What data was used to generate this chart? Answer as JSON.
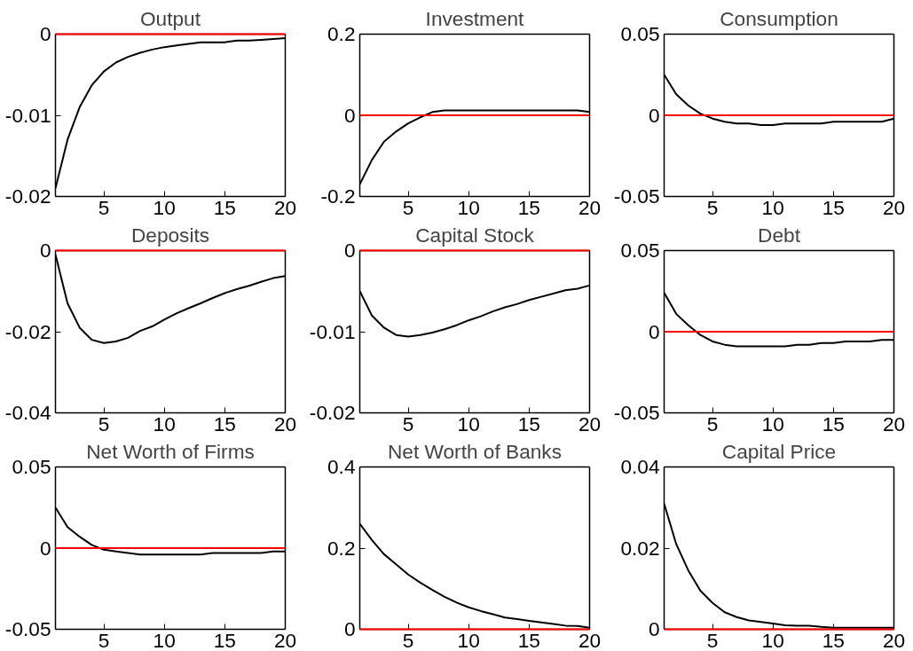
{
  "chart_data": [
    {
      "type": "line",
      "title": "Output",
      "x": [
        1,
        2,
        3,
        4,
        5,
        6,
        7,
        8,
        9,
        10,
        11,
        12,
        13,
        14,
        15,
        16,
        17,
        18,
        19,
        20
      ],
      "series": [
        {
          "color": "#000000",
          "values": [
            -0.019,
            -0.013,
            -0.009,
            -0.0063,
            -0.0046,
            -0.0035,
            -0.0028,
            -0.0023,
            -0.0019,
            -0.0016,
            -0.0014,
            -0.0012,
            -0.001,
            -0.001,
            -0.001,
            -0.0008,
            -0.0008,
            -0.0007,
            -0.0006,
            -0.0005
          ]
        }
      ],
      "xlim": [
        1,
        20
      ],
      "xticks": [
        5,
        10,
        15,
        20
      ],
      "ylim": [
        -0.02,
        0
      ],
      "yticks": [
        -0.02,
        -0.01,
        0
      ],
      "ref_lines": [
        {
          "axis": "y",
          "value": 0,
          "color": "#ff0000"
        }
      ],
      "grid": false
    },
    {
      "type": "line",
      "title": "Investment",
      "x": [
        1,
        2,
        3,
        4,
        5,
        6,
        7,
        8,
        9,
        10,
        11,
        12,
        13,
        14,
        15,
        16,
        17,
        18,
        19,
        20
      ],
      "series": [
        {
          "color": "#000000",
          "values": [
            -0.17,
            -0.11,
            -0.065,
            -0.04,
            -0.02,
            -0.005,
            0.008,
            0.012,
            0.012,
            0.012,
            0.012,
            0.012,
            0.012,
            0.012,
            0.012,
            0.012,
            0.012,
            0.012,
            0.012,
            0.008
          ]
        }
      ],
      "xlim": [
        1,
        20
      ],
      "xticks": [
        5,
        10,
        15,
        20
      ],
      "ylim": [
        -0.2,
        0.2
      ],
      "yticks": [
        -0.2,
        0,
        0.2
      ],
      "ref_lines": [
        {
          "axis": "y",
          "value": 0,
          "color": "#ff0000"
        }
      ],
      "grid": false
    },
    {
      "type": "line",
      "title": "Consumption",
      "x": [
        1,
        2,
        3,
        4,
        5,
        6,
        7,
        8,
        9,
        10,
        11,
        12,
        13,
        14,
        15,
        16,
        17,
        18,
        19,
        20
      ],
      "series": [
        {
          "color": "#000000",
          "values": [
            0.025,
            0.013,
            0.006,
            0.001,
            -0.002,
            -0.004,
            -0.005,
            -0.005,
            -0.006,
            -0.006,
            -0.005,
            -0.005,
            -0.005,
            -0.005,
            -0.004,
            -0.004,
            -0.004,
            -0.004,
            -0.004,
            -0.002
          ]
        }
      ],
      "xlim": [
        1,
        20
      ],
      "xticks": [
        5,
        10,
        15,
        20
      ],
      "ylim": [
        -0.05,
        0.05
      ],
      "yticks": [
        -0.05,
        0,
        0.05
      ],
      "ref_lines": [
        {
          "axis": "y",
          "value": 0,
          "color": "#ff0000"
        }
      ],
      "grid": false
    },
    {
      "type": "line",
      "title": "Deposits",
      "x": [
        1,
        2,
        3,
        4,
        5,
        6,
        7,
        8,
        9,
        10,
        11,
        12,
        13,
        14,
        15,
        16,
        17,
        18,
        19,
        20
      ],
      "series": [
        {
          "color": "#000000",
          "values": [
            -0.001,
            -0.013,
            -0.019,
            -0.022,
            -0.0228,
            -0.0224,
            -0.0215,
            -0.0198,
            -0.0187,
            -0.017,
            -0.0155,
            -0.0142,
            -0.013,
            -0.0117,
            -0.0105,
            -0.0095,
            -0.0087,
            -0.0077,
            -0.0068,
            -0.0063
          ]
        }
      ],
      "xlim": [
        1,
        20
      ],
      "xticks": [
        5,
        10,
        15,
        20
      ],
      "ylim": [
        -0.04,
        0
      ],
      "yticks": [
        -0.04,
        -0.02,
        0
      ],
      "ref_lines": [
        {
          "axis": "y",
          "value": 0,
          "color": "#ff0000"
        }
      ],
      "grid": false
    },
    {
      "type": "line",
      "title": "Capital Stock",
      "x": [
        1,
        2,
        3,
        4,
        5,
        6,
        7,
        8,
        9,
        10,
        11,
        12,
        13,
        14,
        15,
        16,
        17,
        18,
        19,
        20
      ],
      "series": [
        {
          "color": "#000000",
          "values": [
            -0.005,
            -0.008,
            -0.0095,
            -0.0104,
            -0.0106,
            -0.0104,
            -0.0101,
            -0.0097,
            -0.0092,
            -0.0086,
            -0.0081,
            -0.0075,
            -0.007,
            -0.0066,
            -0.0061,
            -0.0057,
            -0.0053,
            -0.0049,
            -0.0047,
            -0.0043
          ]
        }
      ],
      "xlim": [
        1,
        20
      ],
      "xticks": [
        5,
        10,
        15,
        20
      ],
      "ylim": [
        -0.02,
        0
      ],
      "yticks": [
        -0.02,
        -0.01,
        0
      ],
      "ref_lines": [
        {
          "axis": "y",
          "value": 0,
          "color": "#ff0000"
        }
      ],
      "grid": false
    },
    {
      "type": "line",
      "title": "Debt",
      "x": [
        1,
        2,
        3,
        4,
        5,
        6,
        7,
        8,
        9,
        10,
        11,
        12,
        13,
        14,
        15,
        16,
        17,
        18,
        19,
        20
      ],
      "series": [
        {
          "color": "#000000",
          "values": [
            0.024,
            0.011,
            0.004,
            -0.002,
            -0.006,
            -0.008,
            -0.009,
            -0.009,
            -0.009,
            -0.009,
            -0.009,
            -0.008,
            -0.008,
            -0.007,
            -0.007,
            -0.006,
            -0.006,
            -0.006,
            -0.005,
            -0.005
          ]
        }
      ],
      "xlim": [
        1,
        20
      ],
      "xticks": [
        5,
        10,
        15,
        20
      ],
      "ylim": [
        -0.05,
        0.05
      ],
      "yticks": [
        -0.05,
        0,
        0.05
      ],
      "ref_lines": [
        {
          "axis": "y",
          "value": 0,
          "color": "#ff0000"
        }
      ],
      "grid": false
    },
    {
      "type": "line",
      "title": "Net Worth of Firms",
      "x": [
        1,
        2,
        3,
        4,
        5,
        6,
        7,
        8,
        9,
        10,
        11,
        12,
        13,
        14,
        15,
        16,
        17,
        18,
        19,
        20
      ],
      "series": [
        {
          "color": "#000000",
          "values": [
            0.025,
            0.013,
            0.007,
            0.002,
            -0.001,
            -0.002,
            -0.003,
            -0.004,
            -0.004,
            -0.004,
            -0.004,
            -0.004,
            -0.004,
            -0.003,
            -0.003,
            -0.003,
            -0.003,
            -0.003,
            -0.002,
            -0.002
          ]
        }
      ],
      "xlim": [
        1,
        20
      ],
      "xticks": [
        5,
        10,
        15,
        20
      ],
      "ylim": [
        -0.05,
        0.05
      ],
      "yticks": [
        -0.05,
        0,
        0.05
      ],
      "ref_lines": [
        {
          "axis": "y",
          "value": 0,
          "color": "#ff0000"
        }
      ],
      "grid": false
    },
    {
      "type": "line",
      "title": "Net Worth of Banks",
      "x": [
        1,
        2,
        3,
        4,
        5,
        6,
        7,
        8,
        9,
        10,
        11,
        12,
        13,
        14,
        15,
        16,
        17,
        18,
        19,
        20
      ],
      "series": [
        {
          "color": "#000000",
          "values": [
            0.26,
            0.22,
            0.185,
            0.16,
            0.135,
            0.115,
            0.097,
            0.08,
            0.066,
            0.054,
            0.045,
            0.037,
            0.029,
            0.025,
            0.021,
            0.017,
            0.013,
            0.009,
            0.008,
            0.004
          ]
        }
      ],
      "xlim": [
        1,
        20
      ],
      "xticks": [
        5,
        10,
        15,
        20
      ],
      "ylim": [
        0,
        0.4
      ],
      "yticks": [
        0,
        0.2,
        0.4
      ],
      "ref_lines": [
        {
          "axis": "y",
          "value": 0,
          "color": "#ff0000"
        }
      ],
      "grid": false
    },
    {
      "type": "line",
      "title": "Capital Price",
      "x": [
        1,
        2,
        3,
        4,
        5,
        6,
        7,
        8,
        9,
        10,
        11,
        12,
        13,
        14,
        15,
        16,
        17,
        18,
        19,
        20
      ],
      "series": [
        {
          "color": "#000000",
          "values": [
            0.031,
            0.021,
            0.0145,
            0.0095,
            0.0065,
            0.0042,
            0.003,
            0.0022,
            0.0018,
            0.0014,
            0.001,
            0.0009,
            0.0009,
            0.0006,
            0.0004,
            0.0004,
            0.0004,
            0.0004,
            0.0004,
            0.0004
          ]
        }
      ],
      "xlim": [
        1,
        20
      ],
      "xticks": [
        5,
        10,
        15,
        20
      ],
      "ylim": [
        0,
        0.04
      ],
      "yticks": [
        0,
        0.02,
        0.04
      ],
      "ref_lines": [
        {
          "axis": "y",
          "value": 0,
          "color": "#ff0000"
        }
      ],
      "grid": false
    }
  ]
}
